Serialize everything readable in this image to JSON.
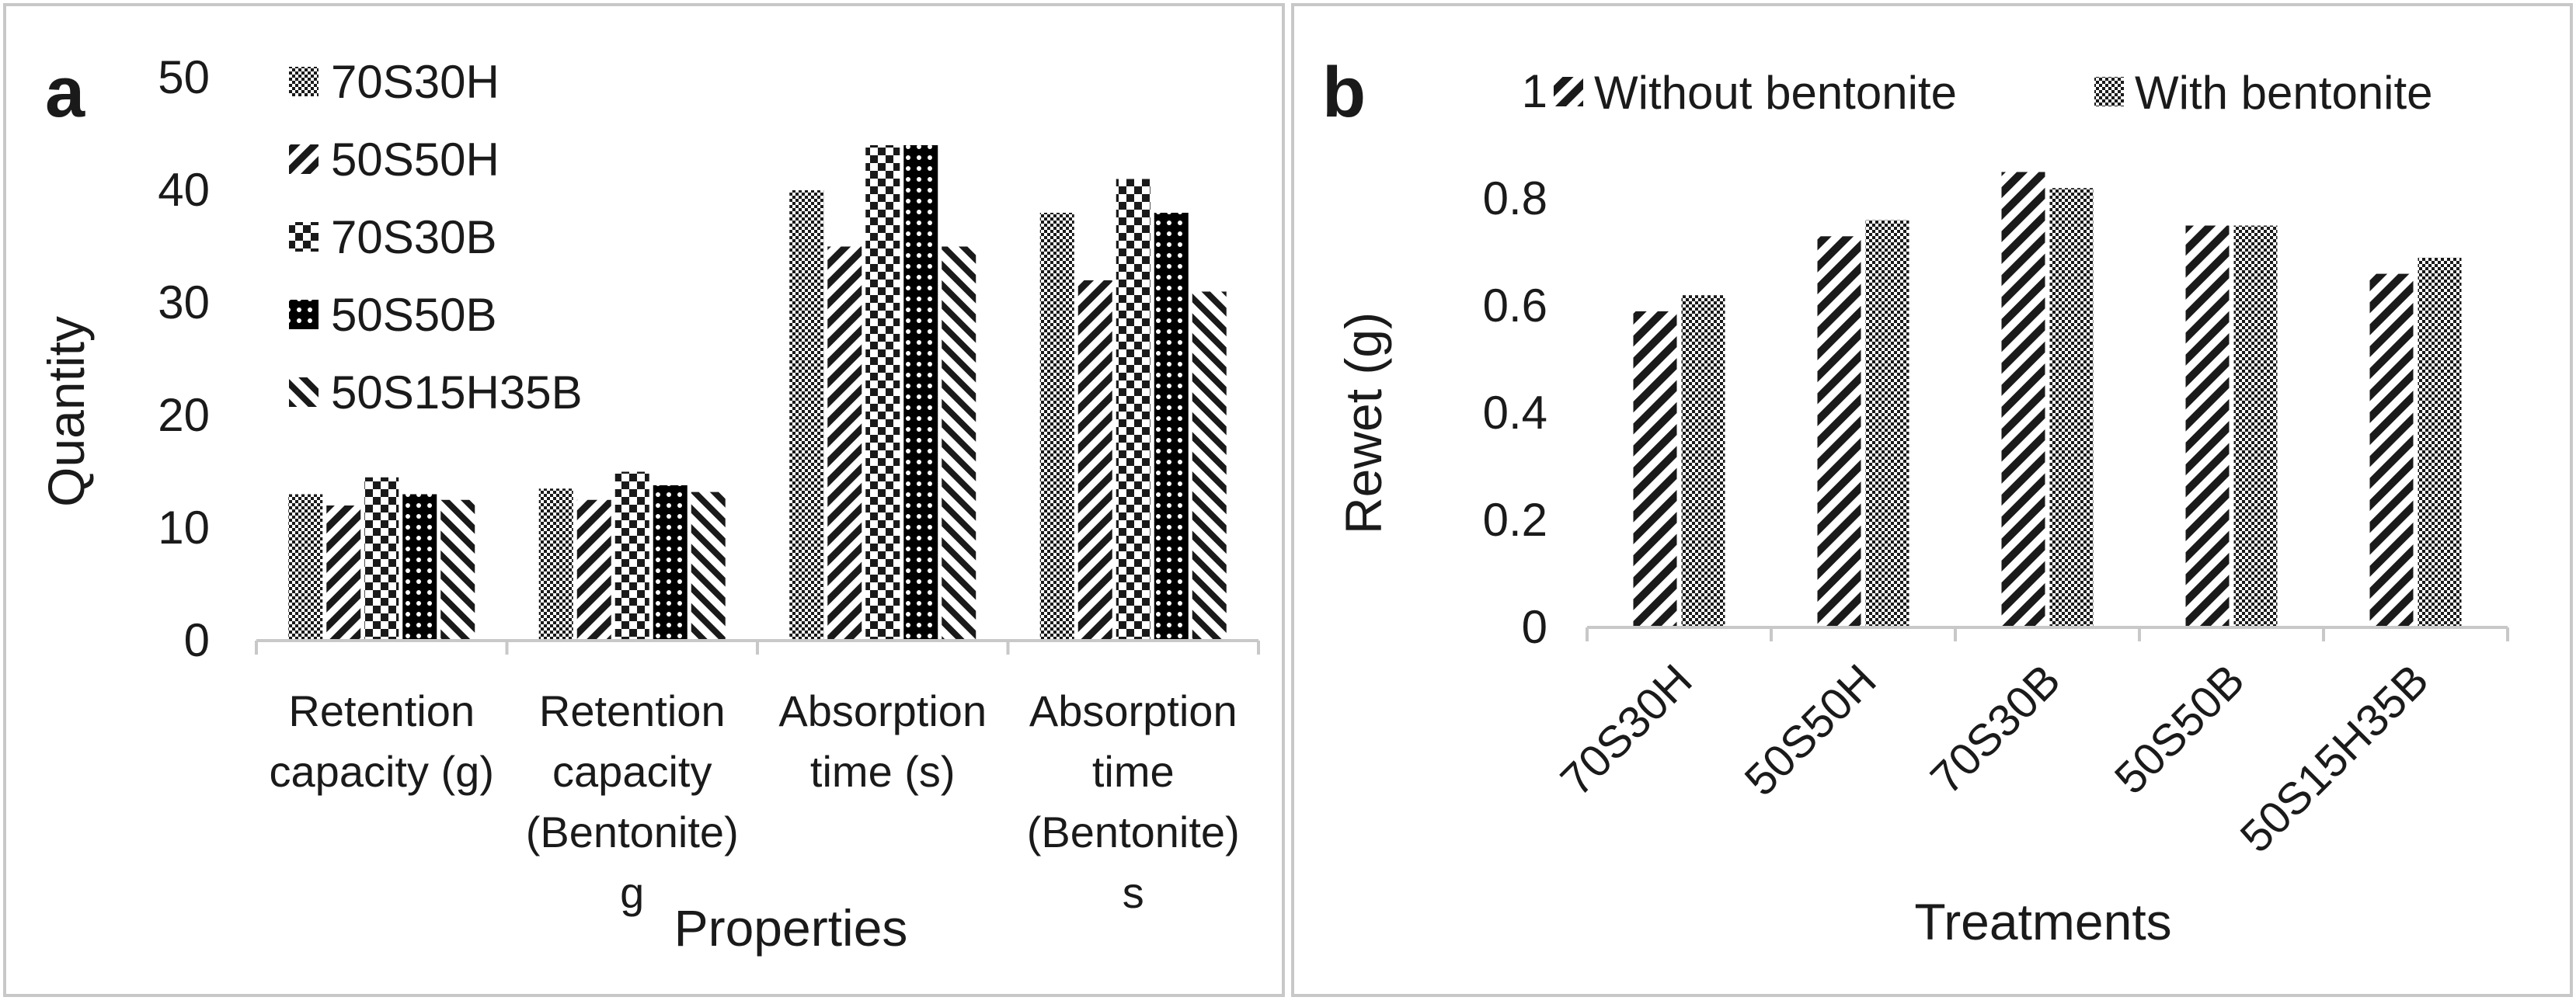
{
  "chart_data": [
    {
      "panel_label": "a",
      "type": "bar",
      "xlabel": "Properties",
      "ylabel": "Quantity",
      "ylim": [
        0,
        50
      ],
      "yticks": [
        "0",
        "10",
        "20",
        "30",
        "40",
        "50"
      ],
      "legend_position": "top-left",
      "categories": [
        [
          "Retention",
          "capacity (g)"
        ],
        [
          "Retention",
          "capacity",
          "(Bentonite)",
          "g"
        ],
        [
          "Absorption",
          "time (s)"
        ],
        [
          "Absorption",
          "time",
          "(Bentonite)",
          "s"
        ]
      ],
      "series": [
        {
          "name": "70S30H",
          "pattern": "checker",
          "values": [
            13,
            13.5,
            40,
            38
          ]
        },
        {
          "name": "50S50H",
          "pattern": "diag-right",
          "values": [
            12,
            12.5,
            35,
            32
          ]
        },
        {
          "name": "70S30B",
          "pattern": "big-checker",
          "values": [
            14.5,
            15,
            44,
            41
          ]
        },
        {
          "name": "50S50B",
          "pattern": "dots",
          "values": [
            13,
            13.8,
            44,
            38
          ]
        },
        {
          "name": "50S15H35B",
          "pattern": "diag-left",
          "values": [
            12.5,
            13.2,
            35,
            31
          ]
        }
      ]
    },
    {
      "panel_label": "b",
      "type": "bar",
      "xlabel": "Treatments",
      "ylabel": "Rewet (g)",
      "ylim": [
        0,
        1
      ],
      "yticks": [
        "0",
        "0.2",
        "0.4",
        "0.6",
        "0.8",
        "1"
      ],
      "legend_position": "top",
      "categories": [
        "70S30H",
        "50S50H",
        "70S30B",
        "50S50B",
        "50S15H35B"
      ],
      "series": [
        {
          "name": "Without bentonite",
          "pattern": "diag-right",
          "values": [
            0.59,
            0.73,
            0.85,
            0.75,
            0.66
          ]
        },
        {
          "name": "With bentonite",
          "pattern": "checker",
          "values": [
            0.62,
            0.76,
            0.82,
            0.75,
            0.69
          ]
        }
      ]
    }
  ]
}
